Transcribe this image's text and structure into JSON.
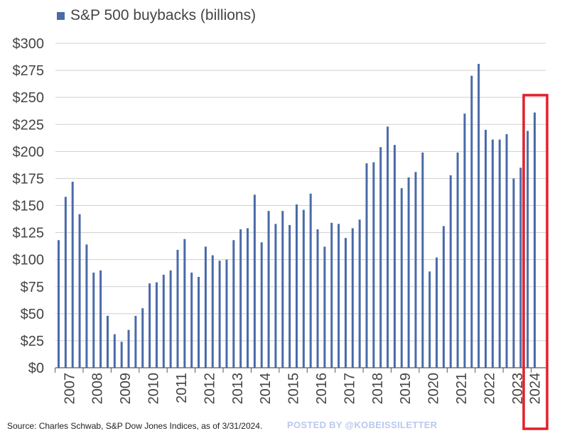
{
  "chart_data": {
    "type": "bar",
    "title": "",
    "legend": [
      "S&P 500 buybacks (billions)"
    ],
    "ylabel": "",
    "xlabel": "",
    "ylim": [
      0,
      300
    ],
    "y_ticks": [
      "$0",
      "$25",
      "$50",
      "$75",
      "$100",
      "$125",
      "$150",
      "$175",
      "$200",
      "$225",
      "$250",
      "$275",
      "$300"
    ],
    "x_ticks": [
      "2007",
      "2008",
      "2009",
      "2010",
      "2011",
      "2012",
      "2013",
      "2014",
      "2015",
      "2016",
      "2017",
      "2018",
      "2019",
      "2020",
      "2021",
      "2022",
      "2023",
      "2024"
    ],
    "categories": [
      "2007 Q1",
      "2007 Q2",
      "2007 Q3",
      "2007 Q4",
      "2008 Q1",
      "2008 Q2",
      "2008 Q3",
      "2008 Q4",
      "2009 Q1",
      "2009 Q2",
      "2009 Q3",
      "2009 Q4",
      "2010 Q1",
      "2010 Q2",
      "2010 Q3",
      "2010 Q4",
      "2011 Q1",
      "2011 Q2",
      "2011 Q3",
      "2011 Q4",
      "2012 Q1",
      "2012 Q2",
      "2012 Q3",
      "2012 Q4",
      "2013 Q1",
      "2013 Q2",
      "2013 Q3",
      "2013 Q4",
      "2014 Q1",
      "2014 Q2",
      "2014 Q3",
      "2014 Q4",
      "2015 Q1",
      "2015 Q2",
      "2015 Q3",
      "2015 Q4",
      "2016 Q1",
      "2016 Q2",
      "2016 Q3",
      "2016 Q4",
      "2017 Q1",
      "2017 Q2",
      "2017 Q3",
      "2017 Q4",
      "2018 Q1",
      "2018 Q2",
      "2018 Q3",
      "2018 Q4",
      "2019 Q1",
      "2019 Q2",
      "2019 Q3",
      "2019 Q4",
      "2020 Q1",
      "2020 Q2",
      "2020 Q3",
      "2020 Q4",
      "2021 Q1",
      "2021 Q2",
      "2021 Q3",
      "2021 Q4",
      "2022 Q1",
      "2022 Q2",
      "2022 Q3",
      "2022 Q4",
      "2023 Q1",
      "2023 Q2",
      "2023 Q3",
      "2023 Q4",
      "2024 Q1"
    ],
    "values": [
      118,
      158,
      172,
      142,
      114,
      88,
      90,
      48,
      31,
      24,
      35,
      48,
      55,
      78,
      79,
      86,
      90,
      109,
      119,
      88,
      84,
      112,
      104,
      99,
      100,
      118,
      128,
      129,
      160,
      116,
      145,
      133,
      145,
      132,
      151,
      146,
      161,
      128,
      112,
      134,
      133,
      120,
      129,
      137,
      189,
      190,
      204,
      223,
      206,
      166,
      176,
      181,
      199,
      89,
      102,
      131,
      178,
      199,
      235,
      270,
      281,
      220,
      211,
      211,
      216,
      175,
      185,
      219,
      236
    ],
    "highlight": "2024",
    "colors": {
      "bar": "#4a6aa8",
      "highlight": "#e0202a",
      "grid": "#cfcfcf",
      "axis": "#595959"
    }
  },
  "source": "Source: Charles Schwab, S&P Dow Jones Indices, as of 3/31/2024.",
  "watermark": "POSTED BY @KOBEISSILETTER"
}
